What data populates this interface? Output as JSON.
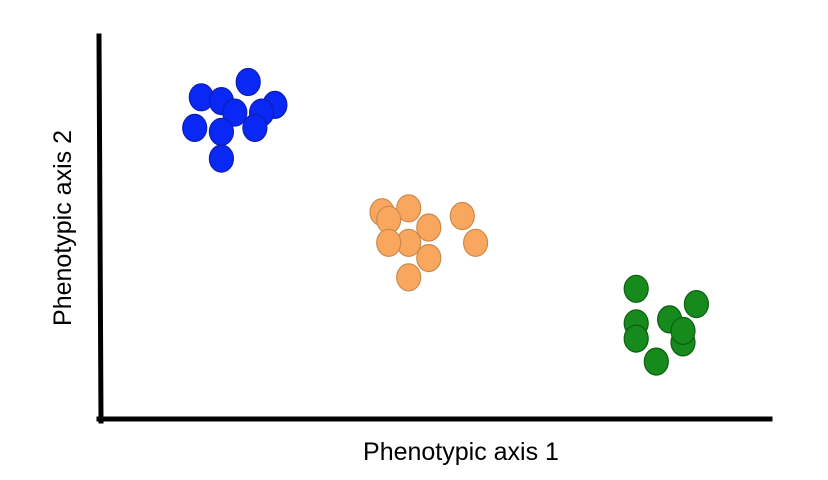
{
  "chart_data": {
    "type": "scatter",
    "title": "",
    "xlabel": "Phenotypic axis 1",
    "ylabel": "Phenotypic axis 2",
    "xlim": [
      0,
      100
    ],
    "ylim": [
      0,
      100
    ],
    "grid": false,
    "legend": "none",
    "series": [
      {
        "color": "#0a28f5",
        "stroke": "#0a1fb0",
        "points": [
          {
            "x": 22,
            "y": 88
          },
          {
            "x": 15,
            "y": 84
          },
          {
            "x": 18,
            "y": 83
          },
          {
            "x": 20,
            "y": 80
          },
          {
            "x": 26,
            "y": 82
          },
          {
            "x": 24,
            "y": 80
          },
          {
            "x": 14,
            "y": 76
          },
          {
            "x": 18,
            "y": 75
          },
          {
            "x": 23,
            "y": 76
          },
          {
            "x": 18,
            "y": 68
          }
        ]
      },
      {
        "color": "#f9a75f",
        "stroke": "#c98a4c",
        "points": [
          {
            "x": 46,
            "y": 55
          },
          {
            "x": 42,
            "y": 54
          },
          {
            "x": 43,
            "y": 52
          },
          {
            "x": 54,
            "y": 53
          },
          {
            "x": 46,
            "y": 46
          },
          {
            "x": 43,
            "y": 46
          },
          {
            "x": 49,
            "y": 50
          },
          {
            "x": 56,
            "y": 46
          },
          {
            "x": 49,
            "y": 42
          },
          {
            "x": 46,
            "y": 37
          }
        ]
      },
      {
        "color": "#168a1c",
        "stroke": "#0c5f10",
        "points": [
          {
            "x": 80,
            "y": 34
          },
          {
            "x": 89,
            "y": 30
          },
          {
            "x": 85,
            "y": 26
          },
          {
            "x": 80,
            "y": 25
          },
          {
            "x": 87,
            "y": 20
          },
          {
            "x": 80,
            "y": 21
          },
          {
            "x": 87,
            "y": 23
          },
          {
            "x": 83,
            "y": 15
          }
        ]
      }
    ]
  }
}
